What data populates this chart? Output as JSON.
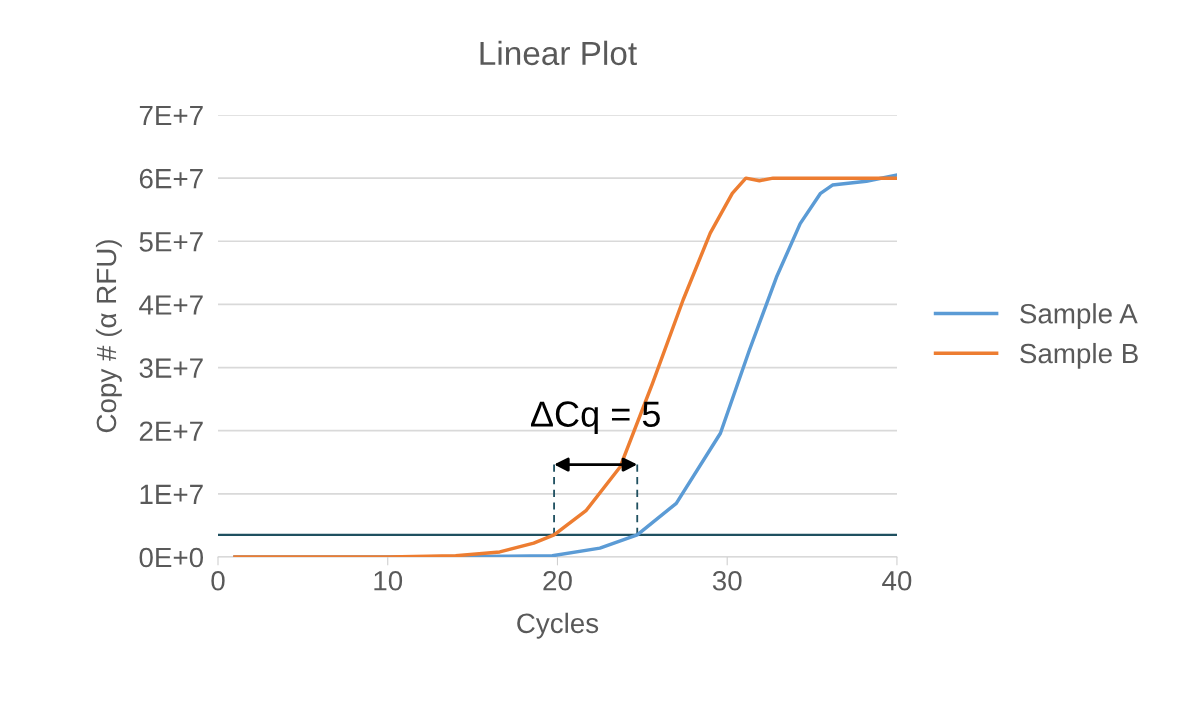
{
  "chart_data": {
    "type": "line",
    "title": "Linear Plot",
    "xlabel": "Cycles",
    "ylabel": "Copy # (α RFU)",
    "xlim": [
      0,
      40
    ],
    "xticks": [
      0,
      10,
      20,
      30,
      40
    ],
    "ylim": [
      0,
      70000000
    ],
    "yticks": [
      {
        "value": 0,
        "label": "0E+0"
      },
      {
        "value": 10000000,
        "label": "1E+7"
      },
      {
        "value": 20000000,
        "label": "2E+7"
      },
      {
        "value": 30000000,
        "label": "3E+7"
      },
      {
        "value": 40000000,
        "label": "4E+7"
      },
      {
        "value": 50000000,
        "label": "5E+7"
      },
      {
        "value": 60000000,
        "label": "6E+7"
      },
      {
        "value": 70000000,
        "label": "7E+7"
      }
    ],
    "grid": "y",
    "legend": "right",
    "line_style": "solid",
    "marker": "none",
    "series": [
      {
        "name": "Sample A",
        "color": "#5b9bd5",
        "x": [
          1,
          10,
          17,
          19.7,
          22.5,
          24.7,
          27.0,
          29.6,
          31.3,
          32.9,
          34.3,
          35.5,
          36.2,
          38.2,
          40
        ],
        "values": [
          0,
          0,
          100000,
          200000,
          1400000,
          3500000,
          8500000,
          19600000,
          32700000,
          44300000,
          52800000,
          57600000,
          58900000,
          59500000,
          60500000
        ]
      },
      {
        "name": "Sample B",
        "color": "#ed7d31",
        "x": [
          1,
          10,
          14,
          16.6,
          18.6,
          19.8,
          21.7,
          23.7,
          25.6,
          27.4,
          29.0,
          30.3,
          31.1,
          31.9,
          32.7,
          40
        ],
        "values": [
          0,
          0,
          200000,
          800000,
          2200000,
          3500000,
          7400000,
          14300000,
          27500000,
          40700000,
          51300000,
          57600000,
          60000000,
          59600000,
          60000000,
          60000000
        ]
      }
    ],
    "ref_lines": [
      {
        "axis": "y",
        "value": 3500000,
        "color": "#1f5060",
        "line_style": "solid"
      },
      {
        "axis": "x",
        "value": 19.8,
        "color": "#1f5060",
        "line_style": "dashed"
      },
      {
        "axis": "x",
        "value": 24.7,
        "color": "#1f5060",
        "line_style": "dashed"
      }
    ],
    "annotations": [
      "ΔCq = 5"
    ]
  }
}
